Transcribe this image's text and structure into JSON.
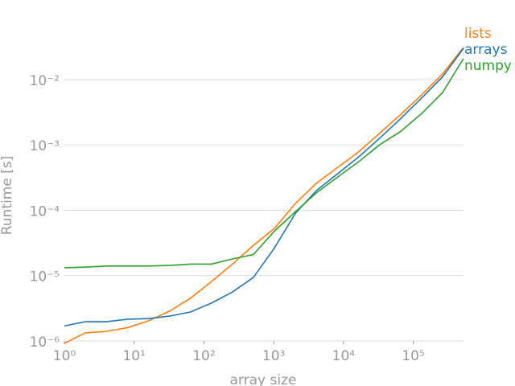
{
  "chart_data": {
    "type": "line",
    "xlabel": "array size",
    "ylabel": "Runtime [s]",
    "x": [
      1,
      2,
      4,
      8,
      16,
      32,
      64,
      128,
      256,
      512,
      1024,
      2048,
      4096,
      8192,
      16384,
      32768,
      65536,
      131072,
      262144,
      524288
    ],
    "series": [
      {
        "name": "lists",
        "color": "#ff7f0e",
        "values": [
          9.2e-07,
          1.33e-06,
          1.4e-06,
          1.6e-06,
          2.03e-06,
          2.85e-06,
          4.5e-06,
          8.1e-06,
          1.5e-05,
          2.9e-05,
          5.3e-05,
          0.000127,
          0.00026,
          0.00045,
          0.00078,
          0.0015,
          0.0029,
          0.0058,
          0.0122,
          0.031
        ]
      },
      {
        "name": "arrays",
        "color": "#1f77b4",
        "values": [
          1.7e-06,
          1.97e-06,
          1.97e-06,
          2.15e-06,
          2.2e-06,
          2.4e-06,
          2.77e-06,
          3.8e-06,
          5.6e-06,
          9.4e-06,
          2.65e-05,
          9e-05,
          0.0002,
          0.00036,
          0.00065,
          0.00126,
          0.0025,
          0.0052,
          0.011,
          0.03
        ]
      },
      {
        "name": "numpy",
        "color": "#2ca02c",
        "values": [
          1.32e-05,
          1.35e-05,
          1.4e-05,
          1.4e-05,
          1.4e-05,
          1.43e-05,
          1.5e-05,
          1.5e-05,
          1.8e-05,
          2.1e-05,
          4.8e-05,
          9.5e-05,
          0.000185,
          0.00032,
          0.00055,
          0.001,
          0.0016,
          0.003,
          0.0063,
          0.021
        ]
      }
    ],
    "xscale": "log",
    "yscale": "log",
    "xlim": [
      1,
      524288
    ],
    "ylim": [
      1e-06,
      0.04
    ],
    "xticks": [
      {
        "value": 1,
        "label": "10⁰"
      },
      {
        "value": 10,
        "label": "10¹"
      },
      {
        "value": 100,
        "label": "10²"
      },
      {
        "value": 1000,
        "label": "10³"
      },
      {
        "value": 10000,
        "label": "10⁴"
      },
      {
        "value": 100000,
        "label": "10⁵"
      }
    ],
    "yticks": [
      {
        "value": 1e-06,
        "label": "10⁻⁶"
      },
      {
        "value": 1e-05,
        "label": "10⁻⁵"
      },
      {
        "value": 0.0001,
        "label": "10⁻⁴"
      },
      {
        "value": 0.001,
        "label": "10⁻³"
      },
      {
        "value": 0.01,
        "label": "10⁻²"
      }
    ],
    "grid": true
  }
}
